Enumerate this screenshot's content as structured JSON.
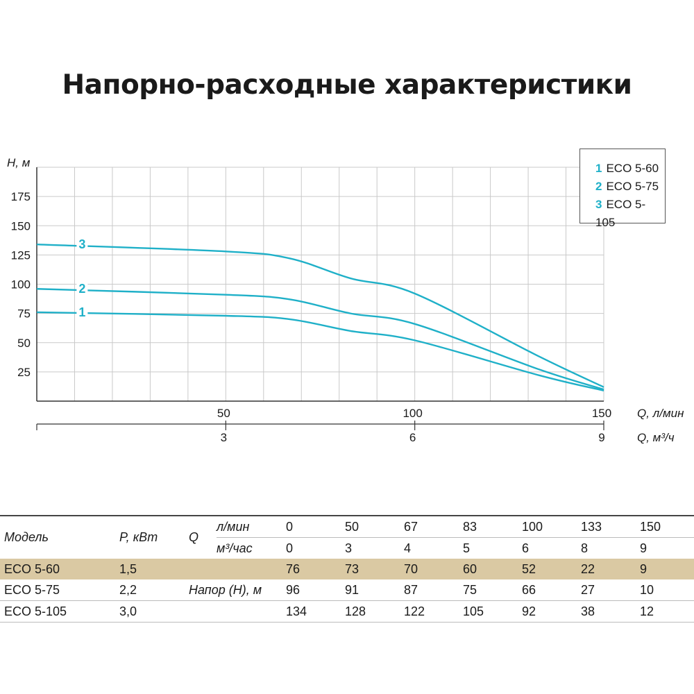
{
  "title": "Напорно-расходные характеристики",
  "legend": [
    {
      "num": "1",
      "label": "ECO 5-60"
    },
    {
      "num": "2",
      "label": "ECO 5-75"
    },
    {
      "num": "3",
      "label": "ECO 5-105"
    }
  ],
  "colors": {
    "curve": "#1fb0c8",
    "grid": "#c9c9c9",
    "axis": "#333333",
    "highlight": "#dac9a3"
  },
  "chart_data": {
    "type": "line",
    "title": "Напорно-расходные характеристики",
    "ylabel": "H, м",
    "xlabel": "Q, л/мин",
    "xlabel2": "Q, м³/ч",
    "xlim": [
      0,
      150
    ],
    "ylim": [
      0,
      200
    ],
    "yticks": [
      25,
      50,
      75,
      100,
      125,
      150,
      175
    ],
    "xticks": [
      50,
      100,
      150
    ],
    "xticks2": [
      {
        "value": 3,
        "flow": 50
      },
      {
        "value": 6,
        "flow": 100
      },
      {
        "value": 9,
        "flow": 150
      }
    ],
    "grid": true,
    "legend_position": "top-right",
    "x": [
      0,
      50,
      67,
      83,
      100,
      133,
      150
    ],
    "series": [
      {
        "name": "1",
        "values": [
          76,
          73,
          70,
          60,
          52,
          22,
          9
        ]
      },
      {
        "name": "2",
        "values": [
          96,
          91,
          87,
          75,
          66,
          27,
          10
        ]
      },
      {
        "name": "3",
        "values": [
          134,
          128,
          122,
          105,
          92,
          38,
          12
        ]
      }
    ]
  },
  "table": {
    "model_header": "Модель",
    "power_header": "P, кВт",
    "q_header": "Q",
    "lpm_unit": "л/мин",
    "m3h_unit": "м³/час",
    "head_label": "Напор (Н), м",
    "lpm_values": [
      "0",
      "50",
      "67",
      "83",
      "100",
      "133",
      "150"
    ],
    "m3h_values": [
      "0",
      "3",
      "4",
      "5",
      "6",
      "8",
      "9"
    ],
    "rows": [
      {
        "model": "ECO 5-60",
        "power": "1,5",
        "values": [
          "76",
          "73",
          "70",
          "60",
          "52",
          "22",
          "9"
        ]
      },
      {
        "model": "ECO 5-75",
        "power": "2,2",
        "values": [
          "96",
          "91",
          "87",
          "75",
          "66",
          "27",
          "10"
        ]
      },
      {
        "model": "ECO 5-105",
        "power": "3,0",
        "values": [
          "134",
          "128",
          "122",
          "105",
          "92",
          "38",
          "12"
        ]
      }
    ]
  }
}
